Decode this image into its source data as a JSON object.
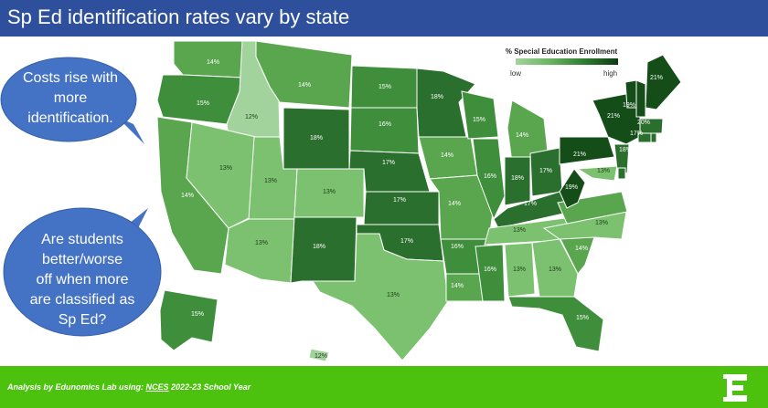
{
  "header": {
    "title": "Sp Ed identification rates vary by state"
  },
  "legend": {
    "title": "% Special Education Enrollment",
    "low": "low",
    "high": "high"
  },
  "bubbles": [
    {
      "text_lines": [
        "Costs rise with",
        "more",
        "identification."
      ]
    },
    {
      "text_lines": [
        "Are students",
        "better/worse",
        "off when more",
        "are classified as",
        "Sp Ed?"
      ]
    }
  ],
  "colors": {
    "header": "#2d4f9c",
    "footer": "#4cc20e",
    "bubble": "#4472c4",
    "scale": [
      "#a3d39c",
      "#7bc16f",
      "#5aa64f",
      "#3f8e3b",
      "#2a6f2d",
      "#154d19"
    ]
  },
  "footer": {
    "caption_prefix": "Analysis by Edunomics Lab using: ",
    "caption_source": "NCES",
    "caption_suffix": " 2022-23 School Year",
    "logo_icon": "edunomics-e-logo"
  },
  "states": [
    {
      "name": "WA",
      "pct": 14,
      "label": "14%"
    },
    {
      "name": "OR",
      "pct": 15,
      "label": "15%"
    },
    {
      "name": "CA",
      "pct": 14,
      "label": "14%"
    },
    {
      "name": "ID",
      "pct": 12,
      "label": "12%"
    },
    {
      "name": "NV",
      "pct": 13,
      "label": "13%"
    },
    {
      "name": "MT",
      "pct": 14,
      "label": "14%"
    },
    {
      "name": "WY",
      "pct": 18,
      "label": "18%"
    },
    {
      "name": "UT",
      "pct": 13,
      "label": "13%"
    },
    {
      "name": "CO",
      "pct": 13,
      "label": "13%"
    },
    {
      "name": "AZ",
      "pct": 13,
      "label": "13%"
    },
    {
      "name": "NM",
      "pct": 18,
      "label": "18%"
    },
    {
      "name": "ND",
      "pct": 15,
      "label": "15%"
    },
    {
      "name": "SD",
      "pct": 16,
      "label": "16%"
    },
    {
      "name": "NE",
      "pct": 17,
      "label": "17%"
    },
    {
      "name": "KS",
      "pct": 17,
      "label": "17%"
    },
    {
      "name": "OK",
      "pct": 17,
      "label": "17%"
    },
    {
      "name": "TX",
      "pct": 13,
      "label": "13%"
    },
    {
      "name": "MN",
      "pct": 18,
      "label": "18%"
    },
    {
      "name": "IA",
      "pct": 14,
      "label": "14%"
    },
    {
      "name": "MO",
      "pct": 14,
      "label": "14%"
    },
    {
      "name": "AR",
      "pct": 16,
      "label": "16%"
    },
    {
      "name": "LA",
      "pct": 14,
      "label": "14%"
    },
    {
      "name": "WI",
      "pct": 15,
      "label": "15%"
    },
    {
      "name": "IL",
      "pct": 16,
      "label": "16%"
    },
    {
      "name": "MI",
      "pct": 14,
      "label": "14%"
    },
    {
      "name": "IN",
      "pct": 18,
      "label": "18%"
    },
    {
      "name": "OH",
      "pct": 17,
      "label": "17%"
    },
    {
      "name": "KY",
      "pct": 17,
      "label": "17%"
    },
    {
      "name": "TN",
      "pct": 13,
      "label": "13%"
    },
    {
      "name": "MS",
      "pct": 16,
      "label": "16%"
    },
    {
      "name": "AL",
      "pct": 13,
      "label": "13%"
    },
    {
      "name": "GA",
      "pct": 13,
      "label": "13%"
    },
    {
      "name": "FL",
      "pct": 15,
      "label": "15%"
    },
    {
      "name": "SC",
      "pct": 14,
      "label": "14%"
    },
    {
      "name": "NC",
      "pct": 13,
      "label": "13%"
    },
    {
      "name": "VA",
      "pct": 14,
      "label": "14%"
    },
    {
      "name": "WV",
      "pct": 19,
      "label": "19%"
    },
    {
      "name": "MD",
      "pct": 13,
      "label": "13%"
    },
    {
      "name": "PA",
      "pct": 21,
      "label": "21%"
    },
    {
      "name": "NY",
      "pct": 21,
      "label": "21%"
    },
    {
      "name": "NJ",
      "pct": 18,
      "label": "18%"
    },
    {
      "name": "VT",
      "pct": 19,
      "label": "19%"
    },
    {
      "name": "NH",
      "pct": 20,
      "label": "20%"
    },
    {
      "name": "MA",
      "pct": 17,
      "label": "17%"
    },
    {
      "name": "CT",
      "pct": 17,
      "label": ""
    },
    {
      "name": "RI",
      "pct": 17,
      "label": ""
    },
    {
      "name": "DE",
      "pct": 17,
      "label": ""
    },
    {
      "name": "ME",
      "pct": 21,
      "label": "21%"
    },
    {
      "name": "AK",
      "pct": 15,
      "label": "15%"
    },
    {
      "name": "HI",
      "pct": 12,
      "label": "12%"
    }
  ]
}
